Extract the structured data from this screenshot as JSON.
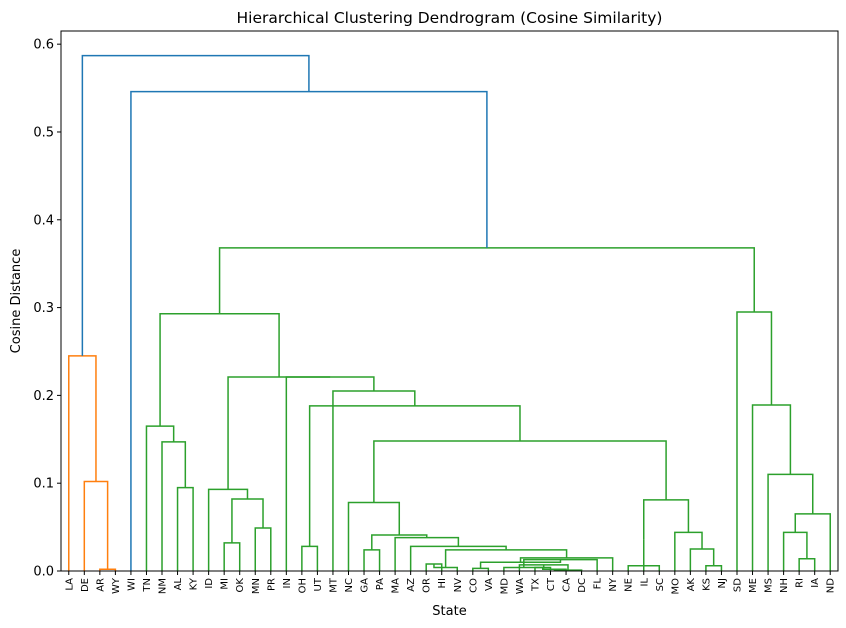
{
  "chart_data": {
    "type": "dendrogram",
    "title": "Hierarchical Clustering Dendrogram (Cosine Similarity)",
    "xlabel": "State",
    "ylabel": "Cosine Distance",
    "ylim": [
      0,
      0.615
    ],
    "yticks": [
      "0.0",
      "0.1",
      "0.2",
      "0.3",
      "0.4",
      "0.5",
      "0.6"
    ],
    "grid": false,
    "colors": {
      "orange": "#ff7f0e",
      "green": "#2ca02c",
      "blue": "#1f77b4"
    },
    "leaves": [
      "LA",
      "DE",
      "AR",
      "WY",
      "WI",
      "TN",
      "NM",
      "AL",
      "KY",
      "ID",
      "MI",
      "OK",
      "MN",
      "PR",
      "IN",
      "OH",
      "UT",
      "MT",
      "NC",
      "GA",
      "PA",
      "MA",
      "AZ",
      "OR",
      "HI",
      "NV",
      "CO",
      "VA",
      "MD",
      "WA",
      "TX",
      "CT",
      "CA",
      "DC",
      "FL",
      "NY",
      "NE",
      "IL",
      "SC",
      "MO",
      "AK",
      "KS",
      "NJ",
      "SD",
      "ME",
      "MS",
      "NH",
      "RI",
      "IA",
      "ND"
    ],
    "merges": [
      {
        "id": "o1",
        "left": "AR",
        "right": "WY",
        "height": 0.002,
        "color": "orange"
      },
      {
        "id": "o2",
        "left": "DE",
        "right": "o1",
        "height": 0.102,
        "color": "orange"
      },
      {
        "id": "o3",
        "left": "LA",
        "right": "o2",
        "height": 0.245,
        "color": "orange"
      },
      {
        "id": "g1",
        "left": "AL",
        "right": "KY",
        "height": 0.095,
        "color": "green"
      },
      {
        "id": "g2",
        "left": "NM",
        "right": "g1",
        "height": 0.147,
        "color": "green"
      },
      {
        "id": "g3",
        "left": "TN",
        "right": "g2",
        "height": 0.165,
        "color": "green"
      },
      {
        "id": "g4",
        "left": "MI",
        "right": "OK",
        "height": 0.032,
        "color": "green"
      },
      {
        "id": "g5",
        "left": "MN",
        "right": "PR",
        "height": 0.049,
        "color": "green"
      },
      {
        "id": "g6",
        "left": "g4",
        "right": "g5",
        "height": 0.082,
        "color": "green"
      },
      {
        "id": "g7",
        "left": "ID",
        "right": "g6",
        "height": 0.093,
        "color": "green"
      },
      {
        "id": "g8",
        "left": "OH",
        "right": "UT",
        "height": 0.028,
        "color": "green"
      },
      {
        "id": "g9",
        "left": "GA",
        "right": "PA",
        "height": 0.024,
        "color": "green"
      },
      {
        "id": "g10",
        "left": "OR",
        "right": "HI",
        "height": 0.008,
        "color": "green"
      },
      {
        "id": "g11",
        "left": "g10",
        "right": "NV",
        "height": 0.004,
        "color": "green"
      },
      {
        "id": "g12",
        "left": "CO",
        "right": "VA",
        "height": 0.003,
        "color": "green"
      },
      {
        "id": "g13",
        "left": "TX",
        "right": "CT",
        "height": 0.004,
        "color": "green"
      },
      {
        "id": "g14",
        "left": "g13",
        "right": "CA",
        "height": 0.002,
        "color": "green"
      },
      {
        "id": "g15",
        "left": "g14",
        "right": "DC",
        "height": 0.001,
        "color": "green"
      },
      {
        "id": "g16",
        "left": "WA",
        "right": "g15",
        "height": 0.007,
        "color": "green"
      },
      {
        "id": "g17",
        "left": "MD",
        "right": "g16",
        "height": 0.004,
        "color": "green"
      },
      {
        "id": "g18",
        "left": "g17",
        "right": "FL",
        "height": 0.013,
        "color": "green"
      },
      {
        "id": "g19",
        "left": "g12",
        "right": "g18",
        "height": 0.01,
        "color": "green"
      },
      {
        "id": "g20",
        "left": "g19",
        "right": "NY",
        "height": 0.015,
        "color": "green"
      },
      {
        "id": "g21",
        "left": "g11",
        "right": "g20",
        "height": 0.024,
        "color": "green"
      },
      {
        "id": "g22",
        "left": "AZ",
        "right": "g21",
        "height": 0.028,
        "color": "green"
      },
      {
        "id": "g23",
        "left": "MA",
        "right": "g22",
        "height": 0.038,
        "color": "green"
      },
      {
        "id": "g24",
        "left": "g9",
        "right": "g23",
        "height": 0.041,
        "color": "green"
      },
      {
        "id": "g25",
        "left": "NC",
        "right": "g24",
        "height": 0.078,
        "color": "green"
      },
      {
        "id": "g26",
        "left": "SC",
        "right": "NE",
        "height": 0.006,
        "color": "green"
      },
      {
        "id": "g27",
        "left": "IL",
        "right": "g26",
        "height": 0.036,
        "color": "green"
      },
      {
        "id": "g28",
        "left": "KS",
        "right": "NJ",
        "height": 0.006,
        "color": "green"
      },
      {
        "id": "g29",
        "left": "AK",
        "right": "g28",
        "height": 0.025,
        "color": "green"
      },
      {
        "id": "g30",
        "left": "MO",
        "right": "g29",
        "height": 0.044,
        "color": "green"
      },
      {
        "id": "g31",
        "left": "g27",
        "right": "g30",
        "height": 0.081,
        "color": "green"
      },
      {
        "id": "g32",
        "left": "g25",
        "right": "g31",
        "height": 0.148,
        "color": "green"
      },
      {
        "id": "g33",
        "left": "g8",
        "right": "g32",
        "height": 0.188,
        "color": "green"
      },
      {
        "id": "g34",
        "left": "MT",
        "right": "g33",
        "height": 0.205,
        "color": "green"
      },
      {
        "id": "g35",
        "left": "IN",
        "right": "g34",
        "height": 0.221,
        "color": "green"
      },
      {
        "id": "g36",
        "left": "g7",
        "right": "g35",
        "height": 0.221,
        "color": "green"
      },
      {
        "id": "g37",
        "left": "g3",
        "right": "g36",
        "height": 0.293,
        "color": "green"
      },
      {
        "id": "g38",
        "left": "RI",
        "right": "IA",
        "height": 0.014,
        "color": "green"
      },
      {
        "id": "g39",
        "left": "NH",
        "right": "g38",
        "height": 0.044,
        "color": "green"
      },
      {
        "id": "g40",
        "left": "g39",
        "right": "ND",
        "height": 0.065,
        "color": "green"
      },
      {
        "id": "g41",
        "left": "MS",
        "right": "g40",
        "height": 0.11,
        "color": "green"
      },
      {
        "id": "g42",
        "left": "ME",
        "right": "g41",
        "height": 0.189,
        "color": "green"
      },
      {
        "id": "g43",
        "left": "SD",
        "right": "g42",
        "height": 0.295,
        "color": "green"
      },
      {
        "id": "g44",
        "left": "g37",
        "right": "g43",
        "height": 0.368,
        "color": "green"
      },
      {
        "id": "b1",
        "left": "WI",
        "right": "g44",
        "height": 0.546,
        "color": "blue"
      },
      {
        "id": "b2",
        "left": "o3",
        "right": "b1",
        "height": 0.587,
        "color": "blue"
      }
    ]
  }
}
